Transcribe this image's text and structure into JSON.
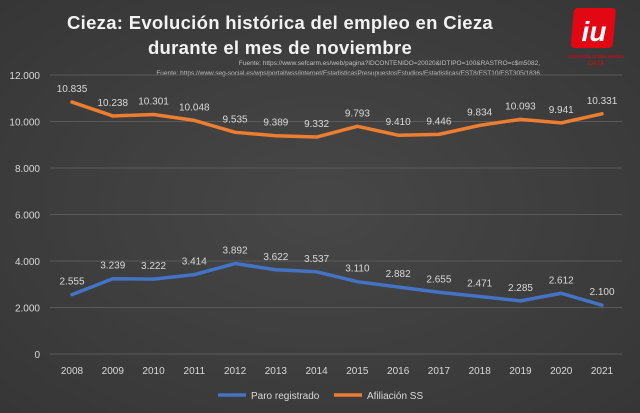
{
  "chart_data": {
    "type": "line",
    "title_line1": "Cieza: Evolución histórica del empleo en Cieza",
    "title_line2": "durante el mes de noviembre",
    "sources": [
      "Fuente: https://www.sefcarm.es/web/pagina?IDCONTENIDO=20020&IDTIPO=100&RASTRO=c$m5082,",
      "Fuente: https://www.seg-social.es/wps/portal/wss/internet/EstadisticasPresupuestosEstudios/Estadisticas/EST8/EST10/EST305/1836"
    ],
    "categories": [
      "2008",
      "2009",
      "2010",
      "2011",
      "2012",
      "2013",
      "2014",
      "2015",
      "2016",
      "2017",
      "2018",
      "2019",
      "2020",
      "2021"
    ],
    "series": [
      {
        "name": "Paro registrado",
        "color": "#4472c4",
        "values": [
          2555,
          3239,
          3222,
          3414,
          3892,
          3622,
          3537,
          3110,
          2882,
          2655,
          2471,
          2285,
          2612,
          2100
        ],
        "labels": [
          "2.555",
          "3.239",
          "3.222",
          "3.414",
          "3.892",
          "3.622",
          "3.537",
          "3.110",
          "2.882",
          "2.655",
          "2.471",
          "2.285",
          "2.612",
          "2.100"
        ]
      },
      {
        "name": "Afiliación SS",
        "color": "#ed7d31",
        "values": [
          10835,
          10238,
          10301,
          10048,
          9535,
          9389,
          9332,
          9793,
          9410,
          9446,
          9834,
          10093,
          9941,
          10331
        ],
        "labels": [
          "10.835",
          "10.238",
          "10.301",
          "10.048",
          "9.535",
          "9.389",
          "9.332",
          "9.793",
          "9.410",
          "9.446",
          "9.834",
          "10.093",
          "9.941",
          "10.331"
        ]
      }
    ],
    "ylim": [
      0,
      12000
    ],
    "yticks": [
      "0",
      "2.000",
      "4.000",
      "6.000",
      "8.000",
      "10.000",
      "12.000"
    ],
    "grid": true,
    "legend_position": "bottom"
  },
  "logo": {
    "text": "iu",
    "caption": "Izquierda unida-verdes",
    "caption2": "CIEZA",
    "color": "#e30613"
  }
}
